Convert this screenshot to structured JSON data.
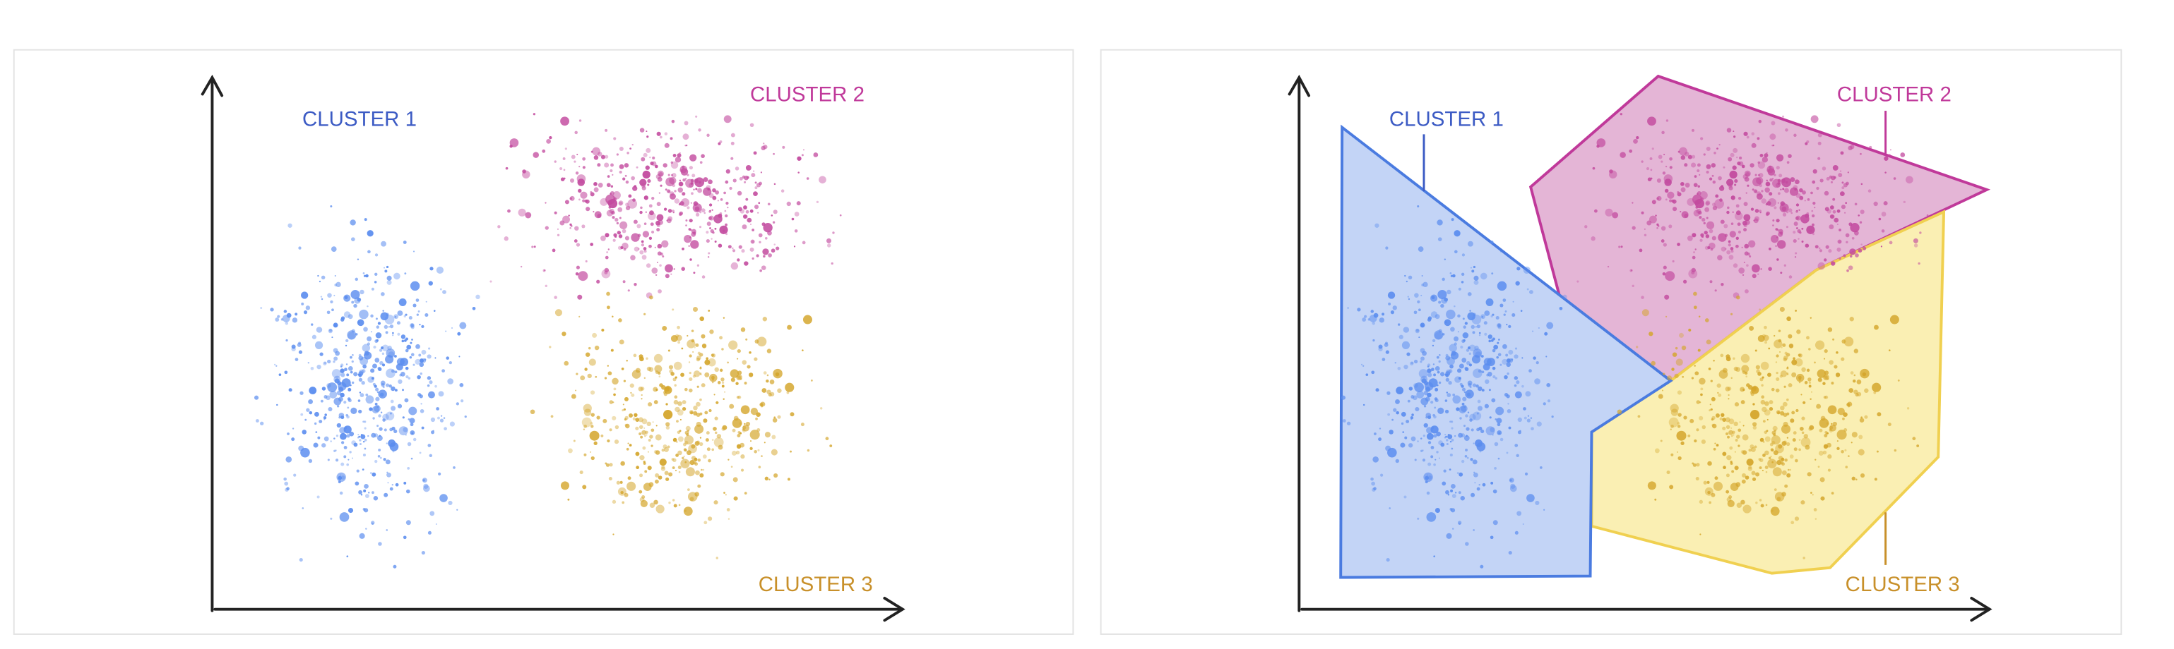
{
  "panels": [
    {
      "labels": [
        "CLUSTER 1",
        "CLUSTER 2",
        "CLUSTER 3"
      ]
    },
    {
      "labels": [
        "CLUSTER 1",
        "CLUSTER 2",
        "CLUSTER 3"
      ]
    }
  ]
}
